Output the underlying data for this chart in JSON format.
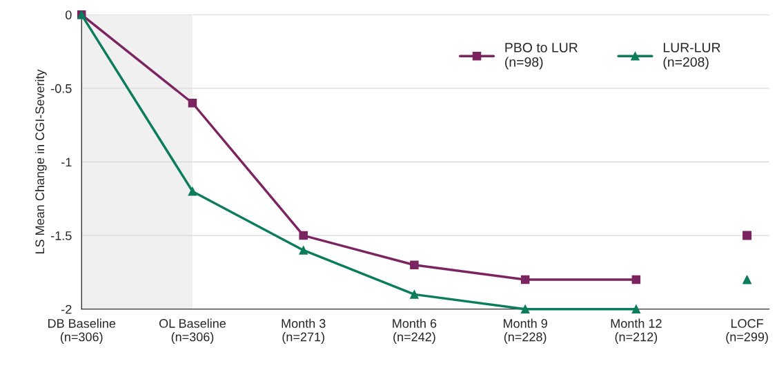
{
  "chart_data": {
    "type": "line",
    "ylabel": "LS Mean Change in CGI-Severity",
    "categories": [
      "DB Baseline\n(n=306)",
      "OL Baseline\n(n=306)",
      "Month 3\n(n=271)",
      "Month 6\n(n=242)",
      "Month 9\n(n=228)",
      "Month 12\n(n=212)",
      "LOCF\n(n=299)"
    ],
    "series": [
      {
        "name": "PBO to LUR\n(n=98)",
        "color": "#7b2461",
        "marker": "square",
        "values": [
          0,
          -0.6,
          -1.5,
          -1.7,
          -1.8,
          -1.8,
          null
        ]
      },
      {
        "name": "LUR-LUR\n(n=208)",
        "color": "#0b7d5c",
        "marker": "triangle",
        "values": [
          0,
          -1.2,
          -1.6,
          -1.9,
          -2.0,
          -2.0,
          null
        ]
      },
      {
        "type": "scatter",
        "color": "#7b2461",
        "marker": "square",
        "x": [
          "LOCF\n(n=299)"
        ],
        "values": [
          -1.5
        ]
      },
      {
        "type": "scatter",
        "color": "#0b7d5c",
        "marker": "triangle",
        "x": [
          "LOCF\n(n=299)"
        ],
        "values": [
          -1.8
        ]
      }
    ],
    "ylim": [
      -2,
      0
    ],
    "yticks": [
      0,
      -0.5,
      -1,
      -1.5,
      -2
    ],
    "grid": "y",
    "legend": "top right",
    "bands": [
      {
        "axis": "x",
        "from": "DB Baseline\n(n=306)",
        "to": "OL Baseline\n(n=306)",
        "color": "#f0f0f0"
      }
    ]
  }
}
